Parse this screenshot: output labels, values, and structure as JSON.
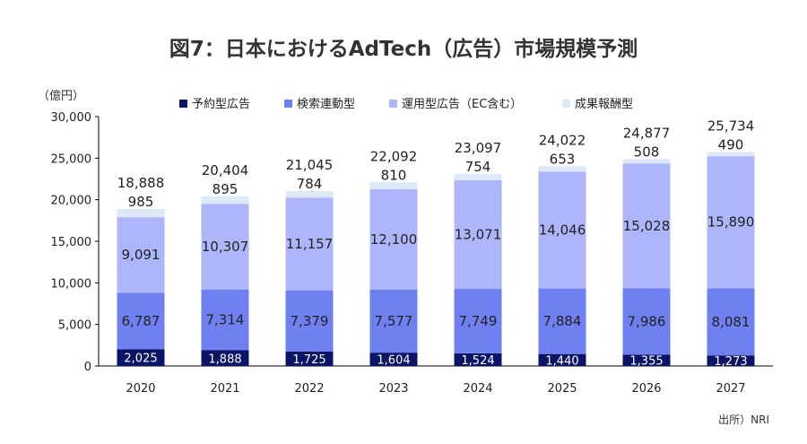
{
  "chart_data": {
    "type": "bar",
    "stacked": true,
    "title": "図7：日本におけるAdTech（広告）市場規模予測",
    "unit_label": "（億円）",
    "categories": [
      "2020",
      "2021",
      "2022",
      "2023",
      "2024",
      "2025",
      "2026",
      "2027"
    ],
    "series": [
      {
        "name": "予約型広告",
        "color": "#0a1466",
        "values": [
          2025,
          1888,
          1725,
          1604,
          1524,
          1440,
          1355,
          1273
        ],
        "labels": [
          "2,025",
          "1,888",
          "1,725",
          "1,604",
          "1,524",
          "1,440",
          "1,355",
          "1,273"
        ]
      },
      {
        "name": "検索連動型",
        "color": "#6f80f0",
        "values": [
          6787,
          7314,
          7379,
          7577,
          7749,
          7884,
          7986,
          8081
        ],
        "labels": [
          "6,787",
          "7,314",
          "7,379",
          "7,577",
          "7,749",
          "7,884",
          "7,986",
          "8,081"
        ]
      },
      {
        "name": "運用型広告（EC含む）",
        "color": "#aeb6fb",
        "values": [
          9091,
          10307,
          11157,
          12100,
          13071,
          14046,
          15028,
          15890
        ],
        "labels": [
          "9,091",
          "10,307",
          "11,157",
          "12,100",
          "13,071",
          "14,046",
          "15,028",
          "15,890"
        ]
      },
      {
        "name": "成果報酬型",
        "color": "#dde9f8",
        "values": [
          985,
          895,
          784,
          810,
          754,
          653,
          508,
          490
        ],
        "labels": [
          "985",
          "895",
          "784",
          "810",
          "754",
          "653",
          "508",
          "490"
        ]
      }
    ],
    "totals": [
      18888,
      20404,
      21045,
      22092,
      23097,
      24022,
      24877,
      25734
    ],
    "total_labels": [
      "18,888",
      "20,404",
      "21,045",
      "22,092",
      "23,097",
      "24,022",
      "24,877",
      "25,734"
    ],
    "ylim": [
      0,
      30000
    ],
    "y_ticks": [
      0,
      5000,
      10000,
      15000,
      20000,
      25000,
      30000
    ],
    "y_tick_labels": [
      "0",
      "5,000",
      "10,000",
      "15,000",
      "20,000",
      "25,000",
      "30,000"
    ],
    "grid": false,
    "legend_position": "top",
    "source": "出所）NRI"
  }
}
